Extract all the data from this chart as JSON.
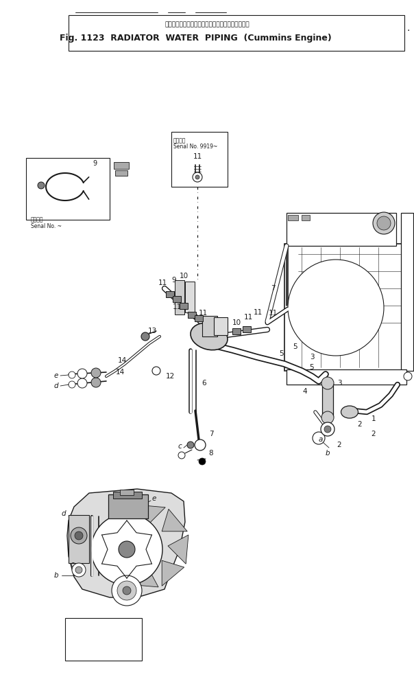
{
  "bg_color": "#ffffff",
  "line_color": "#1a1a1a",
  "fig_width": 6.04,
  "fig_height": 10.15,
  "dpi": 100,
  "title_jp": "ラジエータウォータパイピング（カミンズエンジン",
  "title_en": "Fig. 1123  RADIATOR  WATER  PIPING  (Cummins Engine)",
  "serial1_text": "適用彷號\nSenal No. ~",
  "serial2_text": "適用彷號\nSenal No. 9919~"
}
